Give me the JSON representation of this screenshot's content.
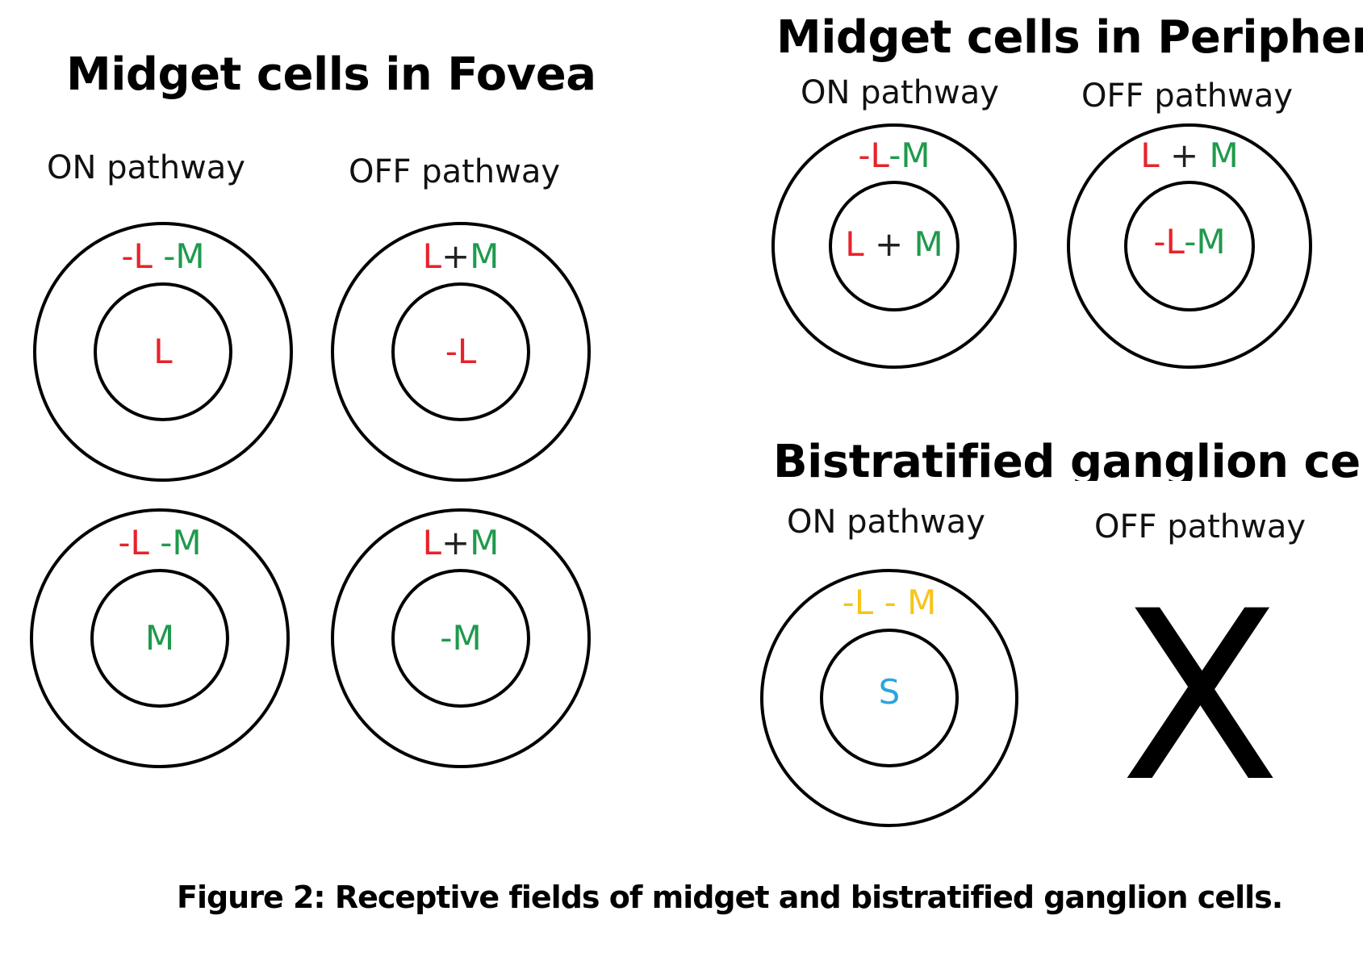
{
  "colors": {
    "L": "#e8222a",
    "M": "#1f9a4c",
    "S": "#2aa6e0",
    "LM_bistratified": "#f6c51b",
    "plus": "#222222"
  },
  "fovea": {
    "title": "Midget cells in Fovea",
    "on_label": "ON pathway",
    "off_label": "OFF pathway",
    "cells": [
      {
        "surround": [
          {
            "t": "-L",
            "c": "L"
          },
          {
            "t": " -M",
            "c": "M"
          }
        ],
        "center": [
          {
            "t": "L",
            "c": "L"
          }
        ]
      },
      {
        "surround": [
          {
            "t": "L",
            "c": "L"
          },
          {
            "t": "+",
            "c": "plus"
          },
          {
            "t": "M",
            "c": "M"
          }
        ],
        "center": [
          {
            "t": "-L",
            "c": "L"
          }
        ]
      },
      {
        "surround": [
          {
            "t": "-L",
            "c": "L"
          },
          {
            "t": " -M",
            "c": "M"
          }
        ],
        "center": [
          {
            "t": "M",
            "c": "M"
          }
        ]
      },
      {
        "surround": [
          {
            "t": "L",
            "c": "L"
          },
          {
            "t": "+",
            "c": "plus"
          },
          {
            "t": "M",
            "c": "M"
          }
        ],
        "center": [
          {
            "t": "-M",
            "c": "M"
          }
        ]
      }
    ]
  },
  "periphery": {
    "title": "Midget cells in Periphery",
    "on_label": "ON pathway",
    "off_label": "OFF pathway",
    "cells": [
      {
        "surround": [
          {
            "t": "-L",
            "c": "L"
          },
          {
            "t": "-M",
            "c": "M"
          }
        ],
        "center": [
          {
            "t": "L",
            "c": "L"
          },
          {
            "t": " + ",
            "c": "plus"
          },
          {
            "t": "M",
            "c": "M"
          }
        ]
      },
      {
        "surround": [
          {
            "t": "L",
            "c": "L"
          },
          {
            "t": " + ",
            "c": "plus"
          },
          {
            "t": "M",
            "c": "M"
          }
        ],
        "center": [
          {
            "t": "-L",
            "c": "L"
          },
          {
            "t": "-M",
            "c": "M"
          }
        ]
      }
    ]
  },
  "bistratified": {
    "title": "Bistratified ganglion cells",
    "on_label": "ON pathway",
    "off_label": "OFF pathway",
    "cell": {
      "surround": [
        {
          "t": "-L - M",
          "c": "LM_bistratified"
        }
      ],
      "center": [
        {
          "t": "S",
          "c": "S"
        }
      ]
    },
    "absent_mark": "X"
  },
  "caption": "Figure 2: Receptive fields of midget and bistratified ganglion cells."
}
